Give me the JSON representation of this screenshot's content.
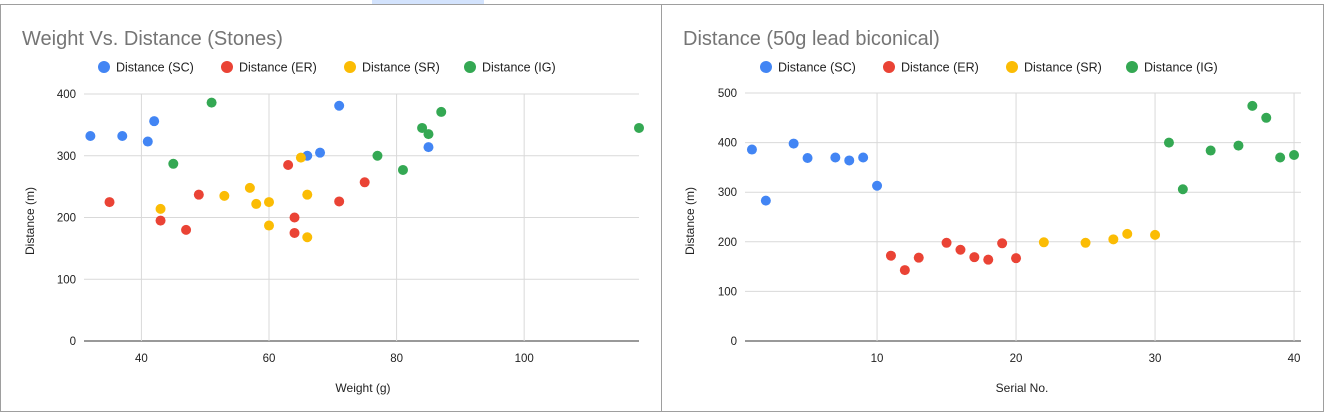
{
  "colors": {
    "Distance (SC)": "#4285f4",
    "Distance (ER)": "#ea4335",
    "Distance (SR)": "#fbbc04",
    "Distance (IG)": "#34a853",
    "title": "#757575",
    "grid": "#d9d9d9"
  },
  "chart_data": [
    {
      "type": "scatter",
      "title": "Weight Vs. Distance (Stones)",
      "xlabel": "Weight (g)",
      "ylabel": "Distance (m)",
      "xlim": [
        31,
        118
      ],
      "ylim": [
        0,
        400
      ],
      "xticks": [
        40,
        60,
        80,
        100
      ],
      "yticks": [
        0,
        100,
        200,
        300,
        400
      ],
      "grid": true,
      "legend": "top-left",
      "series": [
        {
          "name": "Distance (SC)",
          "points": [
            [
              32,
              332
            ],
            [
              37,
              332
            ],
            [
              41,
              323
            ],
            [
              42,
              356
            ],
            [
              66,
              300
            ],
            [
              68,
              305
            ],
            [
              71,
              381
            ],
            [
              85,
              314
            ]
          ]
        },
        {
          "name": "Distance (ER)",
          "points": [
            [
              35,
              225
            ],
            [
              43,
              195
            ],
            [
              47,
              180
            ],
            [
              49,
              237
            ],
            [
              63,
              285
            ],
            [
              64,
              200
            ],
            [
              64,
              175
            ],
            [
              71,
              226
            ],
            [
              75,
              257
            ]
          ]
        },
        {
          "name": "Distance (SR)",
          "points": [
            [
              43,
              214
            ],
            [
              53,
              235
            ],
            [
              57,
              248
            ],
            [
              58,
              222
            ],
            [
              60,
              225
            ],
            [
              60,
              187
            ],
            [
              65,
              297
            ],
            [
              66,
              237
            ],
            [
              66,
              168
            ]
          ]
        },
        {
          "name": "Distance (IG)",
          "points": [
            [
              45,
              287
            ],
            [
              51,
              386
            ],
            [
              77,
              300
            ],
            [
              81,
              277
            ],
            [
              84,
              345
            ],
            [
              85,
              335
            ],
            [
              87,
              371
            ],
            [
              118,
              345
            ]
          ]
        }
      ]
    },
    {
      "type": "scatter",
      "title": "Distance (50g lead biconical)",
      "xlabel": "Serial No.",
      "ylabel": "Distance (m)",
      "xlim": [
        0.5,
        40.5
      ],
      "ylim": [
        0,
        500
      ],
      "xticks": [
        10,
        20,
        30,
        40
      ],
      "yticks": [
        0,
        100,
        200,
        300,
        400,
        500
      ],
      "grid": true,
      "legend": "top-left",
      "series": [
        {
          "name": "Distance (SC)",
          "points": [
            [
              1,
              386
            ],
            [
              2,
              283
            ],
            [
              4,
              398
            ],
            [
              5,
              369
            ],
            [
              7,
              370
            ],
            [
              8,
              364
            ],
            [
              9,
              370
            ],
            [
              10,
              313
            ]
          ]
        },
        {
          "name": "Distance (ER)",
          "points": [
            [
              11,
              172
            ],
            [
              12,
              143
            ],
            [
              13,
              168
            ],
            [
              15,
              198
            ],
            [
              16,
              184
            ],
            [
              17,
              169
            ],
            [
              18,
              164
            ],
            [
              19,
              197
            ],
            [
              20,
              167
            ]
          ]
        },
        {
          "name": "Distance (SR)",
          "points": [
            [
              22,
              199
            ],
            [
              25,
              198
            ],
            [
              27,
              205
            ],
            [
              28,
              216
            ],
            [
              30,
              214
            ]
          ]
        },
        {
          "name": "Distance (IG)",
          "points": [
            [
              31,
              400
            ],
            [
              32,
              306
            ],
            [
              34,
              384
            ],
            [
              36,
              394
            ],
            [
              37,
              474
            ],
            [
              38,
              450
            ],
            [
              39,
              370
            ],
            [
              40,
              375
            ]
          ]
        }
      ]
    }
  ]
}
